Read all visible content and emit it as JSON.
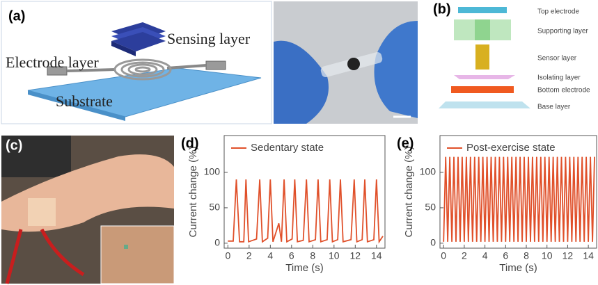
{
  "figure": {
    "panel_a": {
      "label": "(a)",
      "sensing": "Sensing layer",
      "electrode": "Electrode layer",
      "substrate": "Substrate"
    },
    "panel_b": {
      "label": "(b)",
      "layers": [
        "Top electrode",
        "Supporting layer",
        "Sensor layer",
        "Isolating layer",
        "Bottom electrode",
        "Base layer"
      ]
    },
    "panel_c": {
      "label": "(c)"
    }
  },
  "chart_data": [
    {
      "type": "line",
      "label": "(d)",
      "xlabel": "Time (s)",
      "ylabel": "Current change (%)",
      "xlim": [
        -0.35,
        14.8
      ],
      "ylim": [
        -7,
        152
      ],
      "xticks": [
        0,
        2,
        4,
        6,
        8,
        10,
        12,
        14
      ],
      "yticks": [
        0,
        50,
        100
      ],
      "x": [
        0,
        0.5,
        0.8,
        1.1,
        1.5,
        1.7,
        1.95,
        2.7,
        3.0,
        3.25,
        3.75,
        4.0,
        4.25,
        4.8,
        5.05,
        5.3,
        5.55,
        6.05,
        6.3,
        6.55,
        7.1,
        7.4,
        7.65,
        8.25,
        8.5,
        8.75,
        9.35,
        9.6,
        9.85,
        10.35,
        10.6,
        10.85,
        11.6,
        11.9,
        12.15,
        12.65,
        12.9,
        13.15,
        13.75,
        14.0,
        14.25,
        14.6
      ],
      "series": [
        {
          "name": "Sedentary state",
          "color": "#e0502a",
          "values": [
            3,
            3,
            90,
            2,
            2,
            90,
            2,
            6,
            90,
            2,
            7,
            90,
            2,
            28,
            2,
            90,
            2,
            6,
            90,
            2,
            4,
            90,
            2,
            5,
            90,
            2,
            5,
            90,
            2,
            5,
            90,
            2,
            5,
            90,
            2,
            5,
            90,
            2,
            5,
            90,
            2,
            10
          ]
        }
      ]
    },
    {
      "type": "line",
      "label": "(e)",
      "xlabel": "Time (s)",
      "ylabel": "Current change (%)",
      "xlim": [
        -0.35,
        14.8
      ],
      "ylim": [
        -7,
        152
      ],
      "xticks": [
        0,
        2,
        4,
        6,
        8,
        10,
        12,
        14
      ],
      "yticks": [
        0,
        50,
        100
      ],
      "x": [
        0,
        0.2,
        0.4,
        0.6,
        0.8,
        1,
        1.2,
        1.4,
        1.6,
        1.8,
        2,
        2.2,
        2.4,
        2.6,
        2.8,
        3,
        3.2,
        3.4,
        3.6,
        3.8,
        4,
        4.2,
        4.4,
        4.6,
        4.8,
        5,
        5.2,
        5.4,
        5.6,
        5.8,
        6,
        6.2,
        6.4,
        6.6,
        6.8,
        7,
        7.2,
        7.4,
        7.6,
        7.8,
        8,
        8.2,
        8.4,
        8.6,
        8.8,
        9,
        9.2,
        9.4,
        9.6,
        9.8,
        10,
        10.2,
        10.4,
        10.6,
        10.8,
        11,
        11.2,
        11.4,
        11.6,
        11.8,
        12,
        12.2,
        12.4,
        12.6,
        12.8,
        13,
        13.2,
        13.4,
        13.6,
        13.8,
        14,
        14.2,
        14.4,
        14.6
      ],
      "series": [
        {
          "name": "Post-exercise state",
          "color": "#e0502a",
          "values": [
            2,
            122,
            2,
            122,
            2,
            122,
            2,
            122,
            2,
            122,
            2,
            122,
            2,
            122,
            2,
            122,
            2,
            122,
            2,
            122,
            2,
            122,
            2,
            122,
            2,
            122,
            2,
            122,
            2,
            122,
            2,
            122,
            2,
            122,
            2,
            122,
            2,
            122,
            2,
            122,
            2,
            122,
            2,
            122,
            2,
            122,
            2,
            122,
            2,
            122,
            2,
            122,
            2,
            122,
            2,
            122,
            2,
            122,
            2,
            122,
            2,
            122,
            2,
            122,
            2,
            122,
            2,
            122,
            2,
            122,
            2,
            122,
            2,
            122
          ]
        }
      ]
    }
  ]
}
